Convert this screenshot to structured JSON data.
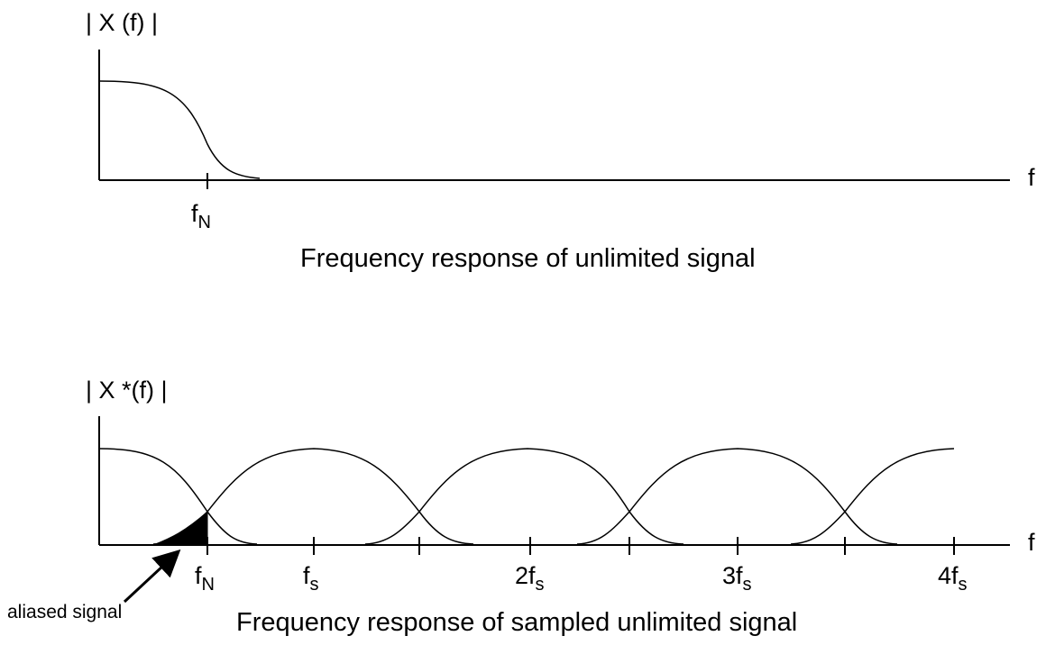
{
  "top_panel": {
    "y_axis_label": "| X (f) |",
    "x_axis_label": "f",
    "marker_label": "f",
    "marker_subscript": "N",
    "caption": "Frequency response of unlimited signal"
  },
  "bottom_panel": {
    "y_axis_label": "| X *(f) |",
    "x_axis_label": "f",
    "tick_labels": [
      {
        "main": "f",
        "sub": "N"
      },
      {
        "main": "f",
        "sub": "s"
      },
      {
        "main": "2f",
        "sub": "s"
      },
      {
        "main": "3f",
        "sub": "s"
      },
      {
        "main": "4f",
        "sub": "s"
      }
    ],
    "annotation": "aliased signal",
    "caption": "Frequency response of sampled unlimited signal"
  },
  "colors": {
    "line": "#000000",
    "background": "#ffffff",
    "aliased_fill": "#000000"
  }
}
